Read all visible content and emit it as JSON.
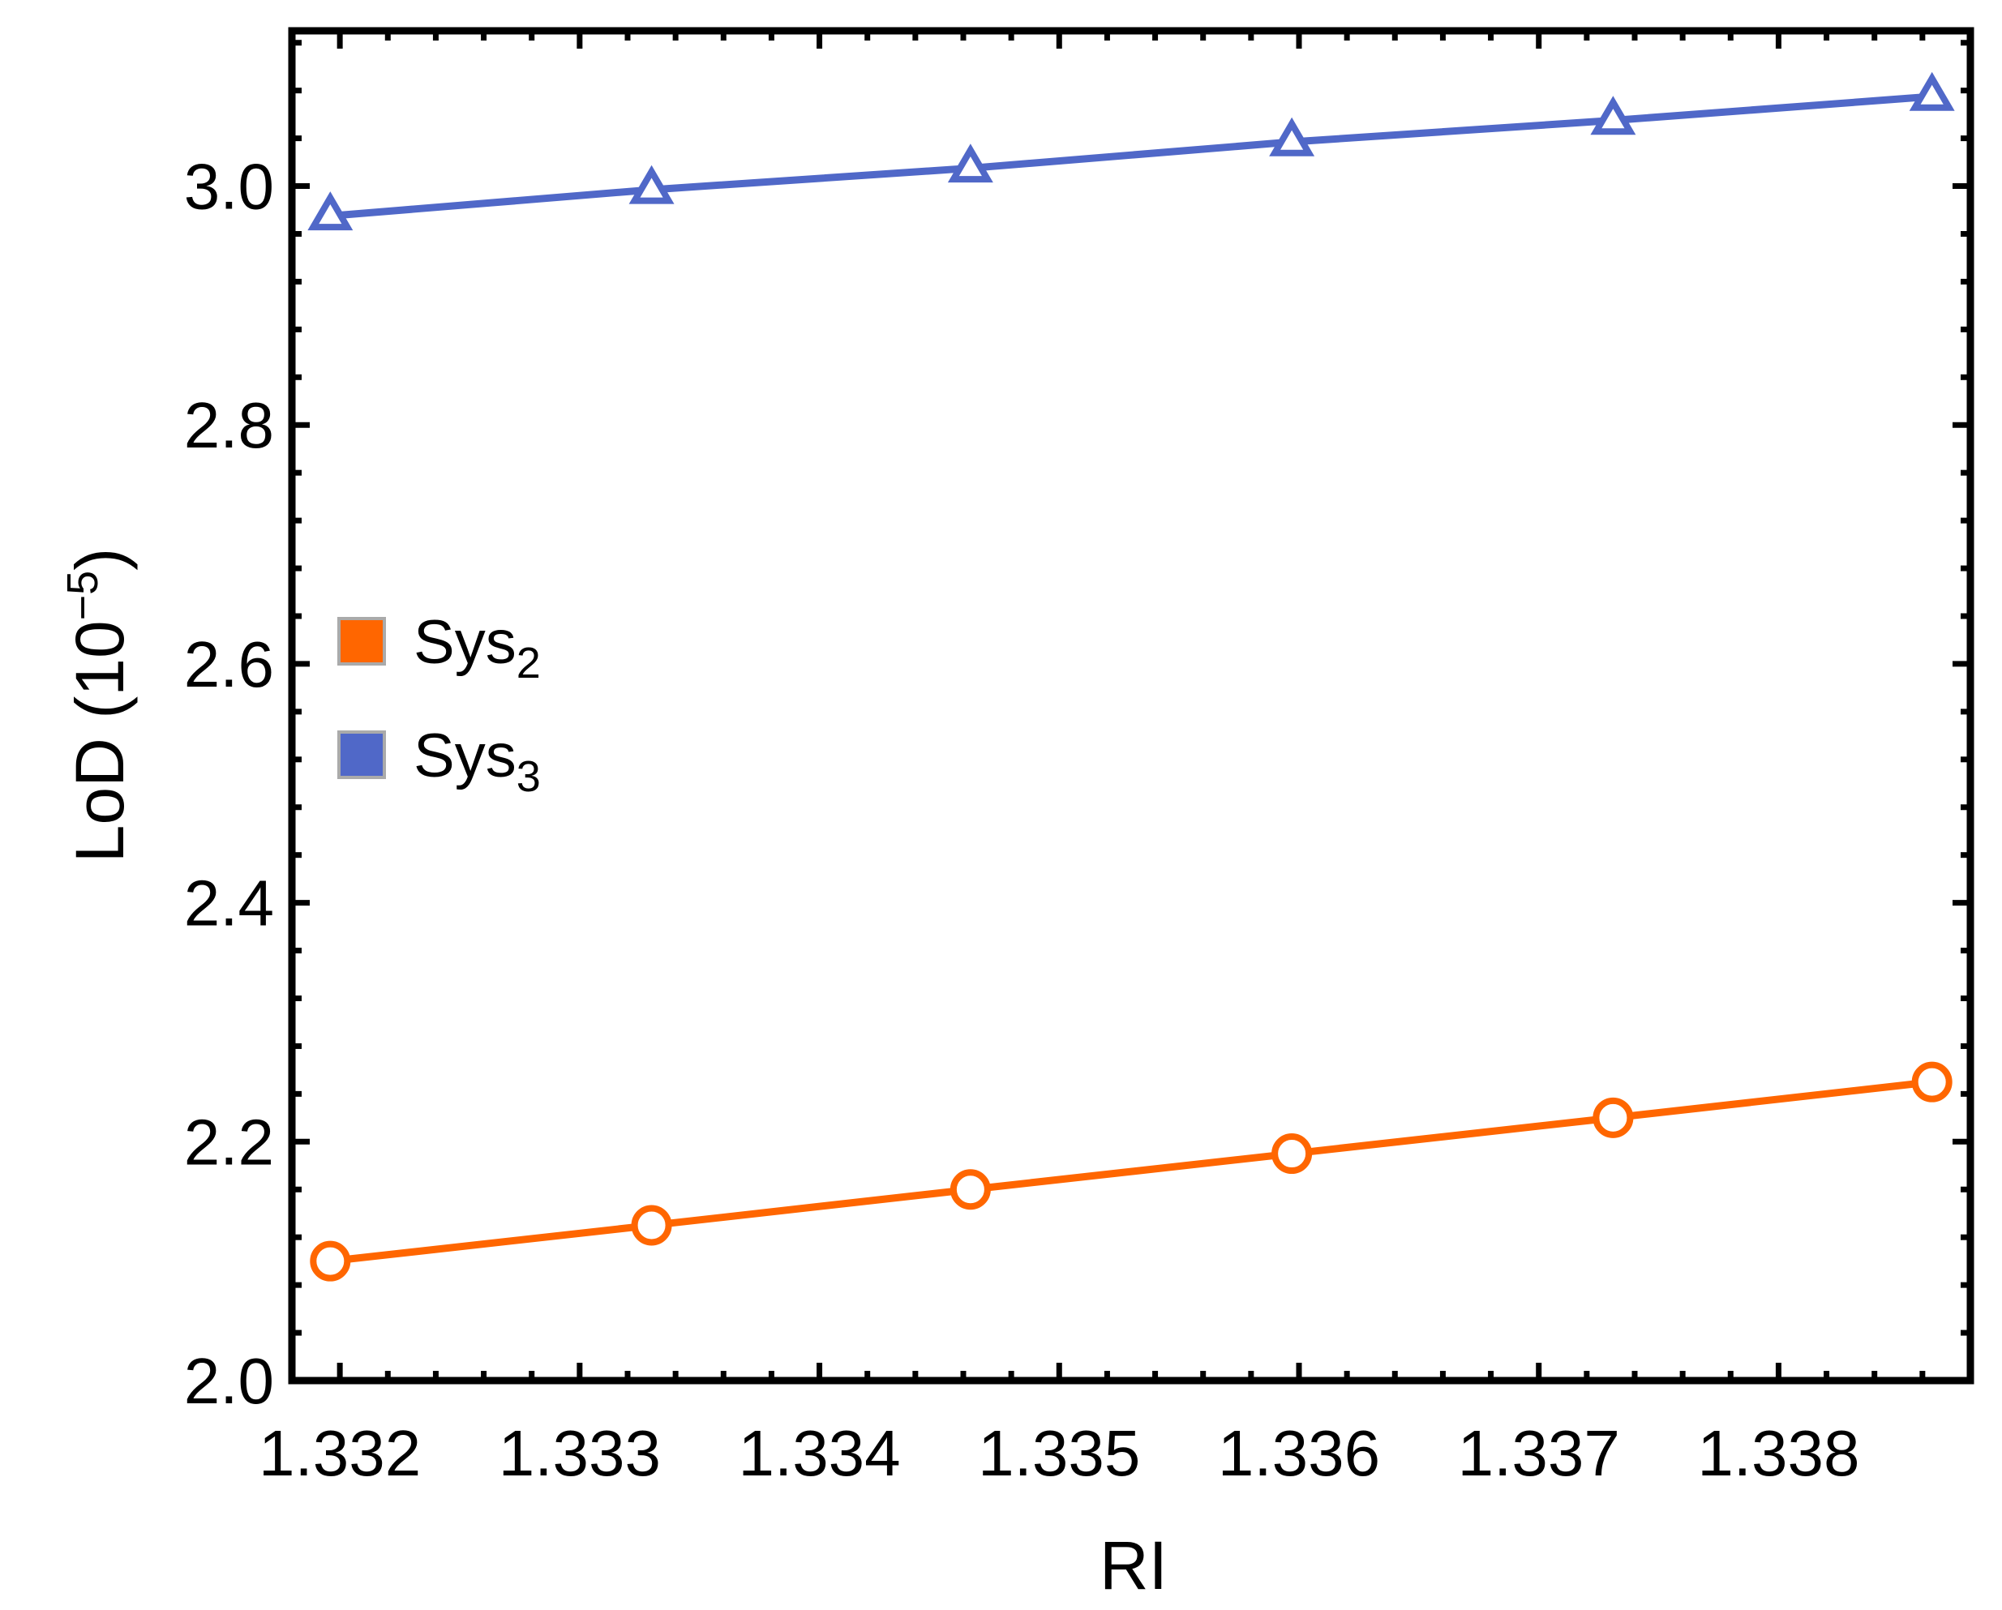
{
  "chart_data": {
    "type": "line",
    "xlabel": "RI",
    "ylabel": "LoD",
    "ylabel_unit": "(10",
    "ylabel_exponent": "−5",
    "ylabel_close": ")",
    "xlim": [
      1.3318,
      1.3388
    ],
    "ylim": [
      2.0,
      3.13
    ],
    "x_ticks": [
      "1.332",
      "1.333",
      "1.334",
      "1.335",
      "1.336",
      "1.337",
      "1.338"
    ],
    "y_ticks": [
      "2.0",
      "2.2",
      "2.4",
      "2.6",
      "2.8",
      "3.0"
    ],
    "x": [
      1.33196,
      1.3333,
      1.33463,
      1.33597,
      1.33731,
      1.33864
    ],
    "series": [
      {
        "name": "Sys",
        "subscript": "2",
        "color": "#ff6600",
        "marker": "circle",
        "values": [
          2.1,
          2.13,
          2.16,
          2.19,
          2.22,
          2.25
        ]
      },
      {
        "name": "Sys",
        "subscript": "3",
        "color": "#5068c8",
        "marker": "triangle",
        "values": [
          2.975,
          2.997,
          3.015,
          3.037,
          3.055,
          3.075
        ]
      }
    ],
    "legend_position": "left-middle",
    "grid": false,
    "frame": true
  }
}
